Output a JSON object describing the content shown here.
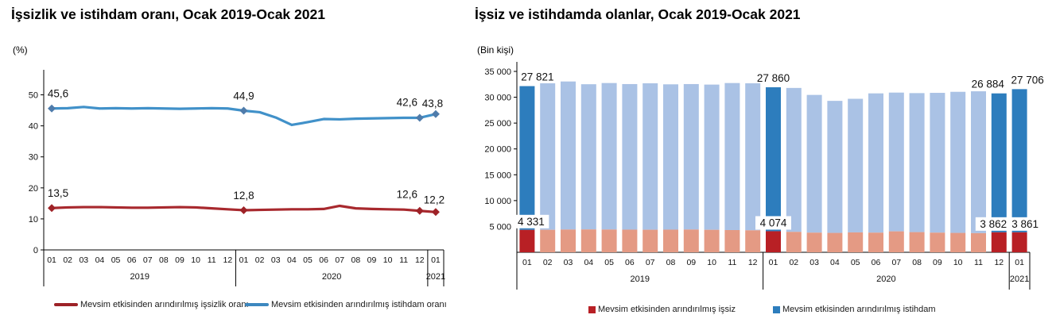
{
  "chart_data": [
    {
      "type": "line",
      "title": "İşsizlik ve istihdam oranı, Ocak 2019-Ocak 2021",
      "unit_label": "(%)",
      "x_months": [
        "01",
        "02",
        "03",
        "04",
        "05",
        "06",
        "07",
        "08",
        "09",
        "10",
        "11",
        "12",
        "01",
        "02",
        "03",
        "04",
        "05",
        "06",
        "07",
        "08",
        "09",
        "10",
        "11",
        "12",
        "01"
      ],
      "year_groups": [
        {
          "label": "2019",
          "span": 12
        },
        {
          "label": "2020",
          "span": 12
        },
        {
          "label": "2021",
          "span": 1
        }
      ],
      "ylim": [
        0,
        55
      ],
      "grid": false,
      "legend_position": "bottom",
      "yticks": [
        {
          "v": 0,
          "label": "0"
        },
        {
          "v": 10,
          "label": "10"
        },
        {
          "v": 20,
          "label": "20"
        },
        {
          "v": 30,
          "label": "30"
        },
        {
          "v": 40,
          "label": "40"
        },
        {
          "v": 50,
          "label": "50"
        }
      ],
      "highlight_indices": [
        0,
        12,
        23,
        24
      ],
      "series": [
        {
          "name": "Mevsim etkisinden arındırılmış işsizlik oranı",
          "color": "#a8292e",
          "marker_color": "#9e2227",
          "values": [
            13.5,
            13.7,
            13.8,
            13.8,
            13.7,
            13.6,
            13.6,
            13.7,
            13.8,
            13.7,
            13.4,
            13.1,
            12.8,
            12.9,
            13.0,
            13.1,
            13.1,
            13.2,
            14.2,
            13.4,
            13.2,
            13.1,
            13.0,
            12.6,
            12.2
          ],
          "labeled_points": [
            {
              "i": 0,
              "text": "13,5",
              "dx": 8,
              "dy": -14
            },
            {
              "i": 12,
              "text": "12,8",
              "dx": 0,
              "dy": -14
            },
            {
              "i": 23,
              "text": "12,6",
              "dx": -16,
              "dy": -16
            },
            {
              "i": 24,
              "text": "12,2",
              "dx": -2,
              "dy": -11
            }
          ]
        },
        {
          "name": "Mevsim etkisinden arındırılmış istihdam oranı",
          "color": "#4191c9",
          "marker_color": "#4f7cab",
          "values": [
            45.6,
            45.7,
            46.1,
            45.6,
            45.7,
            45.6,
            45.7,
            45.6,
            45.5,
            45.6,
            45.7,
            45.6,
            44.9,
            44.4,
            42.7,
            40.3,
            41.2,
            42.2,
            42.1,
            42.3,
            42.4,
            42.5,
            42.6,
            42.6,
            43.8
          ],
          "labeled_points": [
            {
              "i": 0,
              "text": "45,6",
              "dx": 8,
              "dy": -14
            },
            {
              "i": 12,
              "text": "44,9",
              "dx": 0,
              "dy": -14
            },
            {
              "i": 23,
              "text": "42,6",
              "dx": -16,
              "dy": -15
            },
            {
              "i": 24,
              "text": "43,8",
              "dx": -4,
              "dy": -9
            }
          ]
        }
      ],
      "legend": [
        {
          "label": "Mevsim etkisinden arındırılmış işsizlik oranı",
          "color": "#9d2227"
        },
        {
          "label": "Mevsim etkisinden arındırılmış istihdam oranı",
          "color": "#3d88c0"
        }
      ]
    },
    {
      "type": "bar",
      "title": "İşsiz ve istihdamda olanlar, Ocak 2019-Ocak 2021",
      "unit_label": "(Bin kişi)",
      "x_months": [
        "01",
        "02",
        "03",
        "04",
        "05",
        "06",
        "07",
        "08",
        "09",
        "10",
        "11",
        "12",
        "01",
        "02",
        "03",
        "04",
        "05",
        "06",
        "07",
        "08",
        "09",
        "10",
        "11",
        "12",
        "01"
      ],
      "year_groups": [
        {
          "label": "2019",
          "span": 12
        },
        {
          "label": "2020",
          "span": 12
        },
        {
          "label": "2021",
          "span": 1
        }
      ],
      "ylim": [
        0,
        35000
      ],
      "grid": false,
      "legend_position": "bottom",
      "stacked": true,
      "yticks": [
        {
          "v": 5000,
          "label": "5 000"
        },
        {
          "v": 10000,
          "label": "10 000"
        },
        {
          "v": 15000,
          "label": "15 000"
        },
        {
          "v": 20000,
          "label": "20 000"
        },
        {
          "v": 25000,
          "label": "25 000"
        },
        {
          "v": 30000,
          "label": "30 000"
        },
        {
          "v": 35000,
          "label": "35 000"
        }
      ],
      "highlight_indices": [
        0,
        12,
        23,
        24
      ],
      "series": [
        {
          "name": "Mevsim etkisinden arındırılmış işsiz",
          "color": "#e49a84",
          "highlight_color": "#b82025",
          "values": [
            4331,
            4350,
            4400,
            4420,
            4400,
            4380,
            4360,
            4380,
            4400,
            4350,
            4300,
            4250,
            4074,
            3950,
            3800,
            3750,
            3850,
            3800,
            4050,
            3900,
            3800,
            3750,
            3700,
            3862,
            3861
          ],
          "labeled_points": [
            {
              "i": 0,
              "text": "4 331",
              "dx": 5
            },
            {
              "i": 12,
              "text": "4 074",
              "dx": 0
            },
            {
              "i": 23,
              "text": "3 862",
              "dx": -7
            },
            {
              "i": 24,
              "text": "3 861",
              "dx": 7
            }
          ]
        },
        {
          "name": "Mevsim etkisinden arındırılmış istihdam",
          "color": "#aac2e5",
          "highlight_color": "#2d7dbd",
          "values": [
            27821,
            28350,
            28650,
            28100,
            28350,
            28170,
            28340,
            28120,
            28150,
            28100,
            28450,
            28450,
            27860,
            27850,
            26650,
            25550,
            25850,
            26950,
            26850,
            26900,
            27050,
            27300,
            27450,
            26884,
            27706
          ],
          "labeled_points": [
            {
              "i": 0,
              "text": "27 821",
              "dx": 13
            },
            {
              "i": 12,
              "text": "27 860",
              "dx": 0
            },
            {
              "i": 23,
              "text": "26 884",
              "dx": -14
            },
            {
              "i": 24,
              "text": "27 706",
              "dx": 10
            }
          ]
        }
      ],
      "legend": [
        {
          "label": "Mevsim etkisinden arındırılmış işsiz",
          "color": "#b82025"
        },
        {
          "label": "Mevsim etkisinden arındırılmış istihdam",
          "color": "#2d7dbd"
        }
      ]
    }
  ]
}
